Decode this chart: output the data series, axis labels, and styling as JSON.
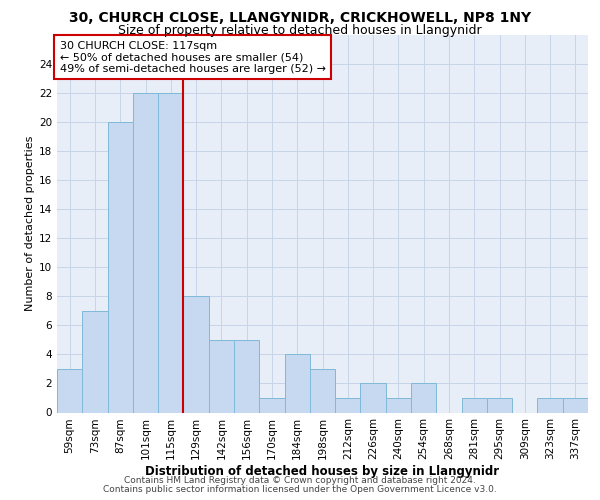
{
  "title1": "30, CHURCH CLOSE, LLANGYNIDR, CRICKHOWELL, NP8 1NY",
  "title2": "Size of property relative to detached houses in Llangynidr",
  "xlabel": "Distribution of detached houses by size in Llangynidr",
  "ylabel": "Number of detached properties",
  "bar_labels": [
    "59sqm",
    "73sqm",
    "87sqm",
    "101sqm",
    "115sqm",
    "129sqm",
    "142sqm",
    "156sqm",
    "170sqm",
    "184sqm",
    "198sqm",
    "212sqm",
    "226sqm",
    "240sqm",
    "254sqm",
    "268sqm",
    "281sqm",
    "295sqm",
    "309sqm",
    "323sqm",
    "337sqm"
  ],
  "bar_values": [
    3,
    7,
    20,
    22,
    22,
    8,
    5,
    5,
    1,
    4,
    3,
    1,
    2,
    1,
    2,
    0,
    1,
    1,
    0,
    1,
    1
  ],
  "bar_color": "#c6d9f0",
  "bar_edge_color": "#7fb9d9",
  "vline_x": 4.5,
  "vline_color": "#cc0000",
  "annotation_text": "30 CHURCH CLOSE: 117sqm\n← 50% of detached houses are smaller (54)\n49% of semi-detached houses are larger (52) →",
  "annotation_box_color": "#ffffff",
  "annotation_box_edge": "#cc0000",
  "footnote1": "Contains HM Land Registry data © Crown copyright and database right 2024.",
  "footnote2": "Contains public sector information licensed under the Open Government Licence v3.0.",
  "ylim": [
    0,
    26
  ],
  "yticks": [
    0,
    2,
    4,
    6,
    8,
    10,
    12,
    14,
    16,
    18,
    20,
    22,
    24
  ],
  "grid_color": "#c8d4e8",
  "bg_color": "#e8eef8",
  "title1_fontsize": 10,
  "title2_fontsize": 9,
  "xlabel_fontsize": 8.5,
  "ylabel_fontsize": 8,
  "tick_fontsize": 7.5,
  "annot_fontsize": 8,
  "footnote_fontsize": 6.5
}
